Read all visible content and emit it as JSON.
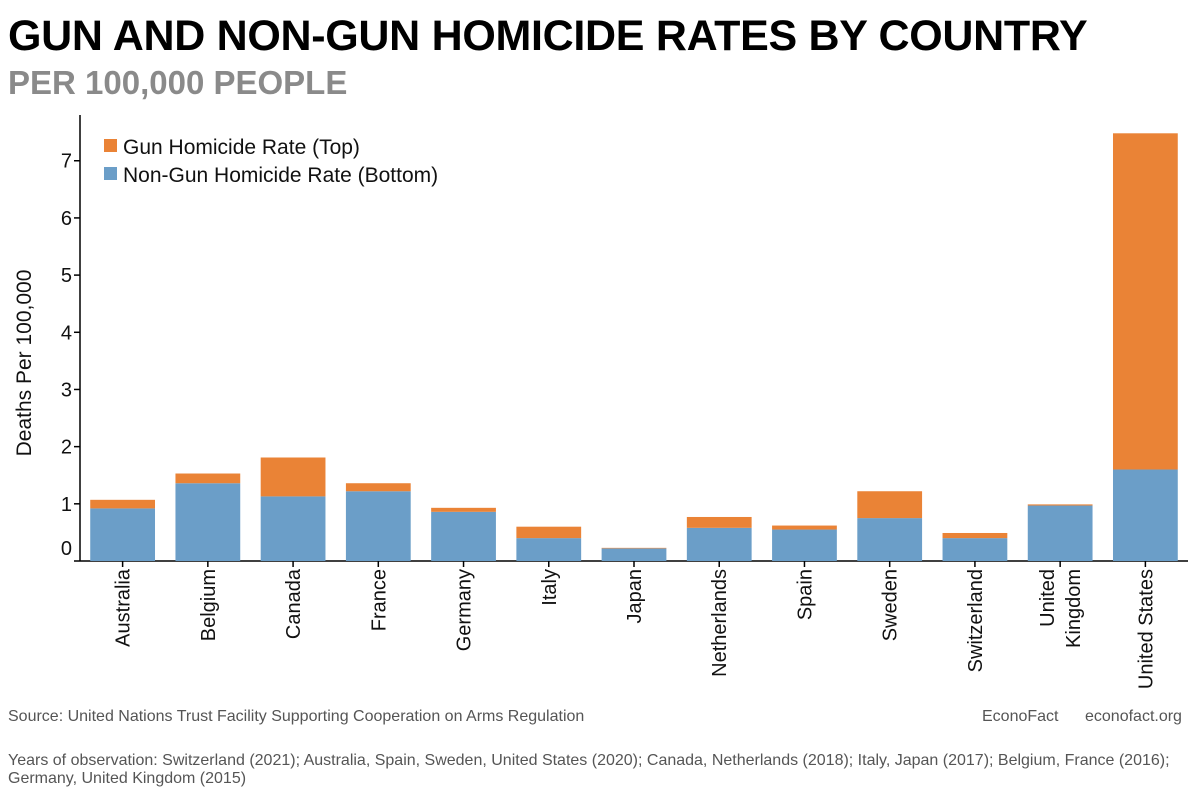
{
  "title": "GUN AND NON-GUN HOMICIDE RATES BY COUNTRY",
  "subtitle": "PER 100,000 PEOPLE",
  "chart_data": {
    "type": "bar",
    "stacked": true,
    "categories": [
      [
        "Australia"
      ],
      [
        "Belgium"
      ],
      [
        "Canada"
      ],
      [
        "France"
      ],
      [
        "Germany"
      ],
      [
        "Italy"
      ],
      [
        "Japan"
      ],
      [
        "Netherlands"
      ],
      [
        "Spain"
      ],
      [
        "Sweden"
      ],
      [
        "Switzerland"
      ],
      [
        "United",
        "Kingdom"
      ],
      [
        "United States"
      ]
    ],
    "series": [
      {
        "name": "Non-Gun Homicide Rate (Bottom)",
        "color": "#6b9ec8",
        "values": [
          0.92,
          1.36,
          1.13,
          1.22,
          0.86,
          0.4,
          0.22,
          0.58,
          0.55,
          0.75,
          0.4,
          0.97,
          1.6
        ]
      },
      {
        "name": "Gun Homicide Rate (Top)",
        "color": "#ea8336",
        "values": [
          0.15,
          0.17,
          0.68,
          0.14,
          0.07,
          0.2,
          0.01,
          0.19,
          0.07,
          0.47,
          0.09,
          0.02,
          5.88
        ]
      }
    ],
    "legend": [
      "Gun Homicide Rate (Top)",
      "Non-Gun Homicide Rate (Bottom)"
    ],
    "legend_colors": [
      "#ea8336",
      "#6b9ec8"
    ],
    "ylabel": "Deaths Per 100,000",
    "yticks": [
      0,
      1,
      2,
      3,
      4,
      5,
      6,
      7
    ],
    "ylim": [
      0,
      7.8
    ],
    "grid": false,
    "legend_position": "top-left"
  },
  "footer": {
    "source": "Source: United Nations Trust Facility Supporting Cooperation on Arms Regulation",
    "brand": "EconoFact",
    "url": "econofact.org",
    "note": "Years of observation: Switzerland (2021); Australia, Spain, Sweden, United States (2020); Canada, Netherlands (2018); Italy, Japan (2017); Belgium, France (2016); Germany, United Kingdom (2015)"
  }
}
